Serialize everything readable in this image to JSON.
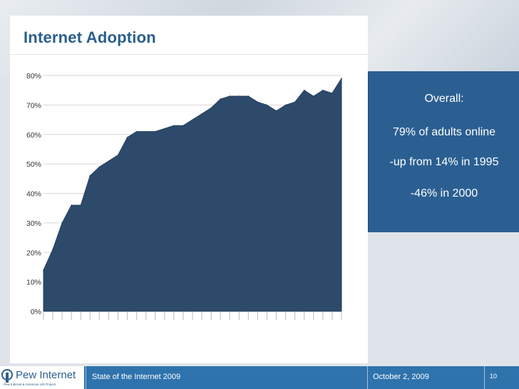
{
  "slide": {
    "title": "Internet Adoption",
    "callout": {
      "line1": "Overall:",
      "line2": "79% of adults online",
      "line3": "-up from 14% in 1995",
      "line4": "-46% in 2000"
    },
    "footer": {
      "brand": "Pew Internet",
      "brand_sub": "Pew Internet & American Life Project",
      "presentation_title": "State of the Internet 2009",
      "date": "October 2, 2009",
      "slide_number": "10"
    },
    "colors": {
      "area_fill": "#2d4a6b",
      "callout_bg": "#2b5f92",
      "title": "#2a5e8c",
      "footer_bg": "#2f73ad"
    }
  },
  "chart_data": {
    "type": "area",
    "title": "",
    "ylim": [
      0,
      80
    ],
    "y_ticks": [
      "0%",
      "10%",
      "20%",
      "30%",
      "40%",
      "50%",
      "60%",
      "70%",
      "80%"
    ],
    "grid": true,
    "values": [
      14,
      21,
      30,
      36,
      36,
      46,
      49,
      51,
      53,
      59,
      61,
      61,
      61,
      62,
      63,
      63,
      65,
      67,
      69,
      72,
      73,
      73,
      73,
      71,
      70,
      68,
      70,
      71,
      75,
      73,
      75,
      74,
      79
    ]
  }
}
